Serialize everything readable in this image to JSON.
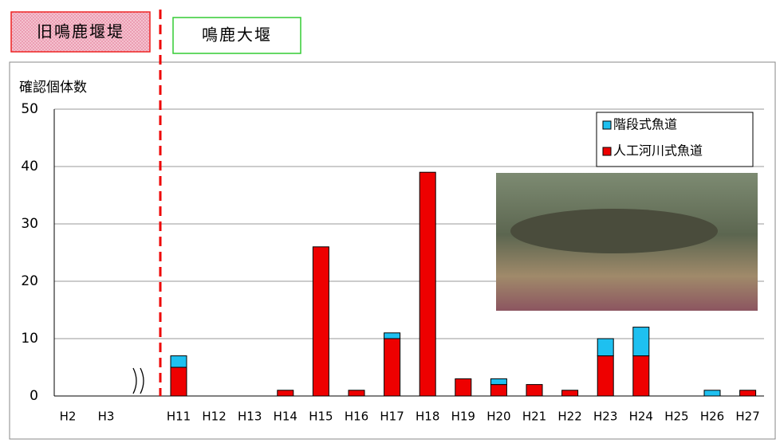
{
  "chart_data": {
    "type": "stacked-bar",
    "annotations": [
      "旧鳴鹿堰堤",
      "鳴鹿大堰"
    ],
    "ylabel": "確認個体数",
    "categories": [
      "H2",
      "H3",
      "H11",
      "H12",
      "H13",
      "H14",
      "H15",
      "H16",
      "H17",
      "H18",
      "H19",
      "H20",
      "H21",
      "H22",
      "H23",
      "H24",
      "H25",
      "H26",
      "H27"
    ],
    "series": [
      {
        "name": "階段式魚道",
        "color": "#1ec0f0",
        "values": [
          0,
          0,
          2,
          0,
          0,
          0,
          0,
          0,
          1,
          0,
          0,
          1,
          0,
          0,
          3,
          5,
          0,
          1,
          0
        ]
      },
      {
        "name": "人工河川式魚道",
        "color": "#ee0000",
        "values": [
          0,
          0,
          5,
          0,
          0,
          1,
          26,
          1,
          10,
          39,
          3,
          2,
          2,
          1,
          7,
          7,
          0,
          0,
          1
        ]
      }
    ],
    "ylim": [
      0,
      50
    ],
    "yticks": [
      0,
      10,
      20,
      30,
      40,
      50
    ],
    "grid": true
  }
}
